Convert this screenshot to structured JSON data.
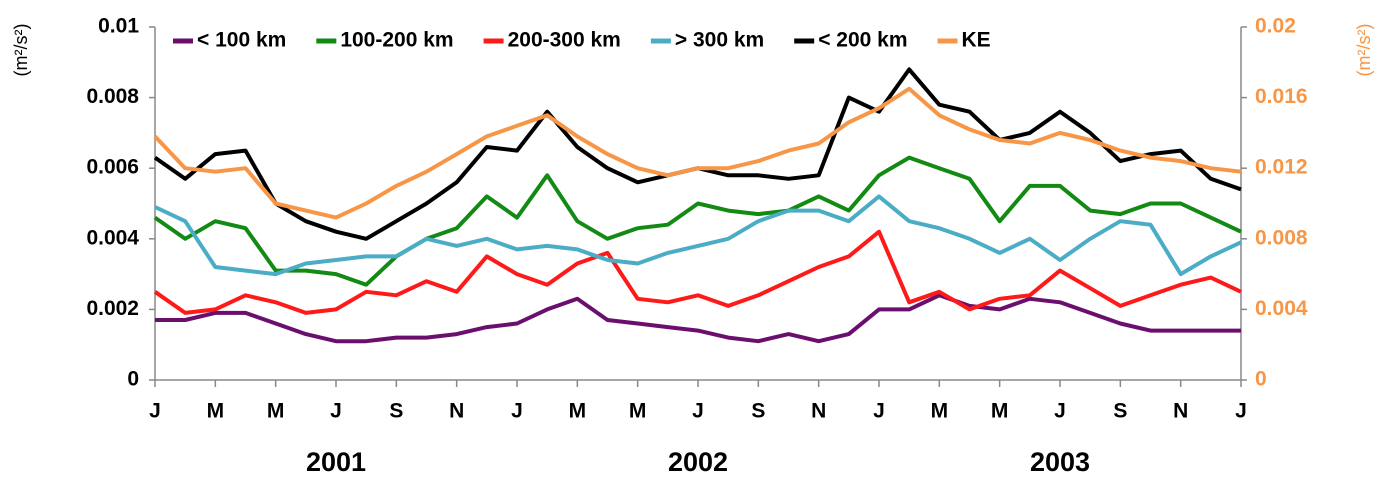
{
  "chart_data": {
    "type": "line",
    "xlim": [
      "2001-01",
      "2004-01"
    ],
    "x": [
      "2001-01",
      "2001-02",
      "2001-03",
      "2001-04",
      "2001-05",
      "2001-06",
      "2001-07",
      "2001-08",
      "2001-09",
      "2001-10",
      "2001-11",
      "2001-12",
      "2002-01",
      "2002-02",
      "2002-03",
      "2002-04",
      "2002-05",
      "2002-06",
      "2002-07",
      "2002-08",
      "2002-09",
      "2002-10",
      "2002-11",
      "2002-12",
      "2003-01",
      "2003-02",
      "2003-03",
      "2003-04",
      "2003-05",
      "2003-06",
      "2003-07",
      "2003-08",
      "2003-09",
      "2003-10",
      "2003-11",
      "2003-12",
      "2004-01"
    ],
    "xticks": [
      {
        "value": "2001-01",
        "label": "J"
      },
      {
        "value": "2001-03",
        "label": "M"
      },
      {
        "value": "2001-05",
        "label": "M"
      },
      {
        "value": "2001-07",
        "label": "J"
      },
      {
        "value": "2001-09",
        "label": "S"
      },
      {
        "value": "2001-11",
        "label": "N"
      },
      {
        "value": "2002-01",
        "label": "J"
      },
      {
        "value": "2002-03",
        "label": "M"
      },
      {
        "value": "2002-05",
        "label": "M"
      },
      {
        "value": "2002-07",
        "label": "J"
      },
      {
        "value": "2002-09",
        "label": "S"
      },
      {
        "value": "2002-11",
        "label": "N"
      },
      {
        "value": "2003-01",
        "label": "J"
      },
      {
        "value": "2003-03",
        "label": "M"
      },
      {
        "value": "2003-05",
        "label": "M"
      },
      {
        "value": "2003-07",
        "label": "J"
      },
      {
        "value": "2003-09",
        "label": "S"
      },
      {
        "value": "2003-11",
        "label": "N"
      },
      {
        "value": "2004-01",
        "label": "J"
      }
    ],
    "year_labels": [
      {
        "value": "2001-07",
        "label": "2001"
      },
      {
        "value": "2002-07",
        "label": "2002"
      },
      {
        "value": "2003-07",
        "label": "2003"
      }
    ],
    "ylabel": "(m²/s²)",
    "y2label": "(m²/s²)",
    "ylim": [
      0,
      0.01
    ],
    "yticks": [
      0,
      0.002,
      0.004,
      0.006,
      0.008,
      0.01
    ],
    "y2lim": [
      0,
      0.02
    ],
    "y2ticks": [
      0,
      0.004,
      0.008,
      0.012,
      0.016,
      0.02
    ],
    "y2color": "#f79646",
    "legend": "top",
    "series": [
      {
        "name": "< 100 km",
        "color": "#6a0f6e",
        "values": [
          0.0017,
          0.0017,
          0.0019,
          0.0019,
          0.0016,
          0.0013,
          0.0011,
          0.0011,
          0.0012,
          0.0012,
          0.0013,
          0.0015,
          0.0016,
          0.002,
          0.0023,
          0.0017,
          0.0016,
          0.0015,
          0.0014,
          0.0012,
          0.0011,
          0.0013,
          0.0011,
          0.0013,
          0.002,
          0.002,
          0.0024,
          0.0021,
          0.002,
          0.0023,
          0.0022,
          0.0019,
          0.0016,
          0.0014,
          0.0014,
          0.0014,
          0.0014
        ]
      },
      {
        "name": "100-200 km",
        "color": "#138a14",
        "values": [
          0.0046,
          0.004,
          0.0045,
          0.0043,
          0.0031,
          0.0031,
          0.003,
          0.0027,
          0.0035,
          0.004,
          0.0043,
          0.0052,
          0.0046,
          0.0058,
          0.0045,
          0.004,
          0.0043,
          0.0044,
          0.005,
          0.0048,
          0.0047,
          0.0048,
          0.0052,
          0.0048,
          0.0058,
          0.0063,
          0.006,
          0.0057,
          0.0045,
          0.0055,
          0.0055,
          0.0048,
          0.0047,
          0.005,
          0.005,
          0.0046,
          0.0042
        ]
      },
      {
        "name": "200-300 km",
        "color": "#ff1a1a",
        "values": [
          0.0025,
          0.0019,
          0.002,
          0.0024,
          0.0022,
          0.0019,
          0.002,
          0.0025,
          0.0024,
          0.0028,
          0.0025,
          0.0035,
          0.003,
          0.0027,
          0.0033,
          0.0036,
          0.0023,
          0.0022,
          0.0024,
          0.0021,
          0.0024,
          0.0028,
          0.0032,
          0.0035,
          0.0042,
          0.0022,
          0.0025,
          0.002,
          0.0023,
          0.0024,
          0.0031,
          0.0026,
          0.0021,
          0.0024,
          0.0027,
          0.0029,
          0.0025
        ]
      },
      {
        "name": "> 300 km",
        "color": "#4bacc6",
        "values": [
          0.0049,
          0.0045,
          0.0032,
          0.0031,
          0.003,
          0.0033,
          0.0034,
          0.0035,
          0.0035,
          0.004,
          0.0038,
          0.004,
          0.0037,
          0.0038,
          0.0037,
          0.0034,
          0.0033,
          0.0036,
          0.0038,
          0.004,
          0.0045,
          0.0048,
          0.0048,
          0.0045,
          0.0052,
          0.0045,
          0.0043,
          0.004,
          0.0036,
          0.004,
          0.0034,
          0.004,
          0.0045,
          0.0044,
          0.003,
          0.0035,
          0.0039
        ]
      },
      {
        "name": "< 200 km",
        "color": "#000000",
        "values": [
          0.0063,
          0.0057,
          0.0064,
          0.0065,
          0.005,
          0.0045,
          0.0042,
          0.004,
          0.0045,
          0.005,
          0.0056,
          0.0066,
          0.0065,
          0.0076,
          0.0066,
          0.006,
          0.0056,
          0.0058,
          0.006,
          0.0058,
          0.0058,
          0.0057,
          0.0058,
          0.008,
          0.0076,
          0.0088,
          0.0078,
          0.0076,
          0.0068,
          0.007,
          0.0076,
          0.007,
          0.0062,
          0.0064,
          0.0065,
          0.0057,
          0.0054
        ]
      },
      {
        "name": "KE",
        "color": "#f79646",
        "axis": "y2",
        "values": [
          0.0138,
          0.012,
          0.0118,
          0.012,
          0.01,
          0.0096,
          0.0092,
          0.01,
          0.011,
          0.0118,
          0.0128,
          0.0138,
          0.0144,
          0.015,
          0.0138,
          0.0128,
          0.012,
          0.0116,
          0.012,
          0.012,
          0.0124,
          0.013,
          0.0134,
          0.0146,
          0.0154,
          0.0165,
          0.015,
          0.0142,
          0.0136,
          0.0134,
          0.014,
          0.0136,
          0.013,
          0.0126,
          0.0124,
          0.012,
          0.0118
        ]
      }
    ]
  }
}
